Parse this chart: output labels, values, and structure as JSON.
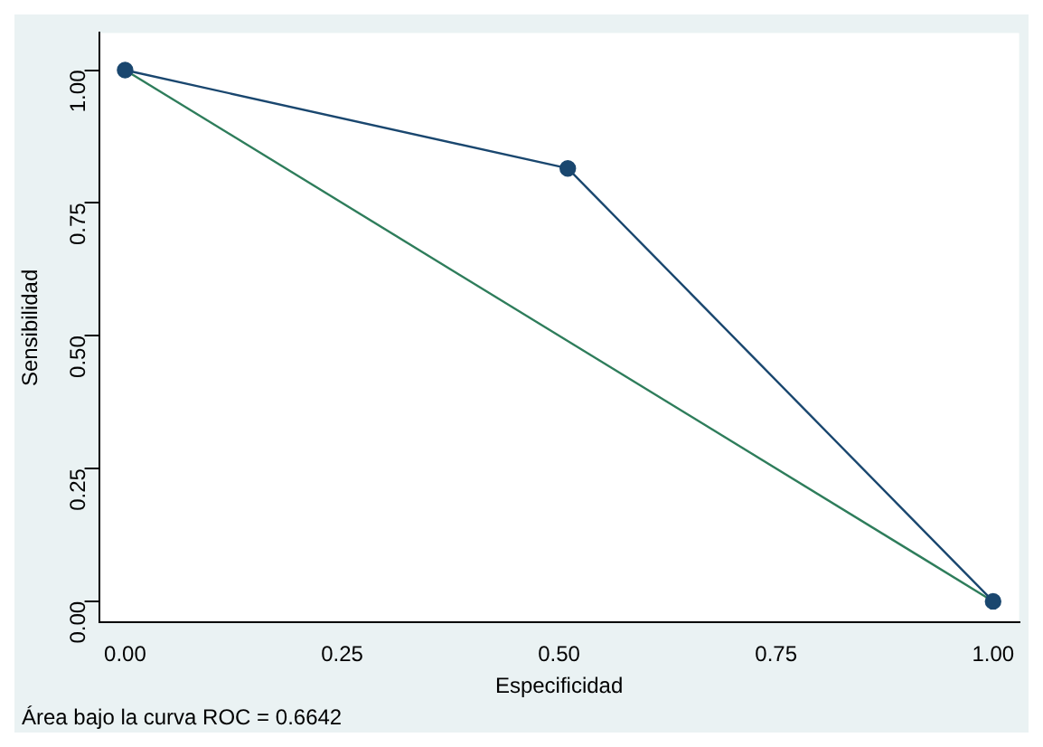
{
  "chart_data": {
    "type": "line",
    "xlabel": "Especificidad",
    "ylabel": "Sensibilidad",
    "x": [
      0,
      0.51,
      1
    ],
    "series": [
      {
        "color": "#1a476f",
        "values": [
          1,
          0.815,
          0
        ],
        "marker": "circle"
      },
      {
        "color": "#2e7d5b",
        "x": [
          0,
          1
        ],
        "values": [
          1,
          0
        ],
        "marker": "none"
      }
    ],
    "xlim": [
      -0.03,
      1.03
    ],
    "ylim": [
      -0.04,
      1.07
    ],
    "xticks": [
      {
        "value": 0,
        "label": "0.00"
      },
      {
        "value": 0.25,
        "label": "0.25"
      },
      {
        "value": 0.5,
        "label": "0.50"
      },
      {
        "value": 0.75,
        "label": "0.75"
      },
      {
        "value": 1,
        "label": "1.00"
      }
    ],
    "yticks": [
      {
        "value": 0,
        "label": "0.00"
      },
      {
        "value": 0.25,
        "label": "0.25"
      },
      {
        "value": 0.5,
        "label": "0.50"
      },
      {
        "value": 0.75,
        "label": "0.75"
      },
      {
        "value": 1,
        "label": "1.00"
      }
    ],
    "grid": false,
    "legend": false,
    "annotations": [
      "Área bajo la curva ROC = 0.6642"
    ]
  }
}
